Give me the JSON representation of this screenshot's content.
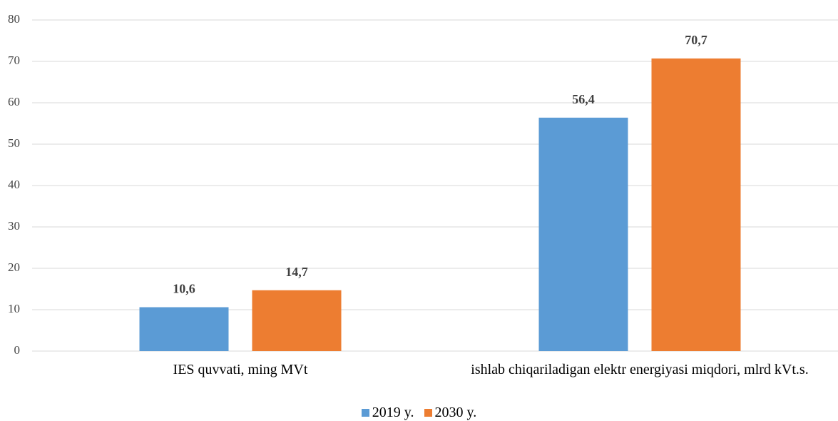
{
  "chart_data": {
    "type": "bar",
    "categories": [
      "IES quvvati, ming MVt",
      "ishlab chiqariladigan elektr energiyasi miqdori, mlrd kVt.s."
    ],
    "series": [
      {
        "name": "2019 y.",
        "color": "#5b9bd5",
        "values": [
          10.6,
          56.4
        ],
        "value_labels": [
          "10,6",
          "56,4"
        ]
      },
      {
        "name": "2030 y.",
        "color": "#ed7d31",
        "values": [
          14.7,
          70.7
        ],
        "value_labels": [
          "14,7",
          "70,7"
        ]
      }
    ],
    "ylim": [
      0,
      80
    ],
    "yticks": [
      0,
      10,
      20,
      30,
      40,
      50,
      60,
      70,
      80
    ],
    "grid": true,
    "legend": "bottom"
  }
}
